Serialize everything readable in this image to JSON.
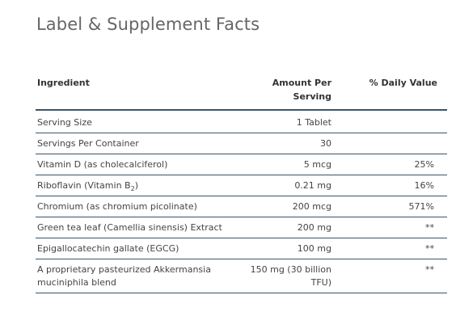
{
  "page": {
    "title": "Label & Supplement Facts"
  },
  "table": {
    "headers": {
      "ingredient": "Ingredient",
      "amount": "Amount Per Serving",
      "daily_value": "% Daily Value"
    },
    "rows": [
      {
        "ingredient": "Serving Size",
        "amount": "1 Tablet",
        "daily_value": ""
      },
      {
        "ingredient": "Servings Per Container",
        "amount": "30",
        "daily_value": ""
      },
      {
        "ingredient": "Vitamin D (as cholecalciferol)",
        "amount": "5 mcg",
        "daily_value": "25%"
      },
      {
        "ingredient_main": "Riboflavin (Vitamin B",
        "ingredient_sub": "2",
        "ingredient_end": ")",
        "amount": "0.21 mg",
        "daily_value": "16%"
      },
      {
        "ingredient": "Chromium (as chromium picolinate)",
        "amount": "200 mcg",
        "daily_value": "571%"
      },
      {
        "ingredient": "Green tea leaf (Camellia sinensis) Extract",
        "amount": "200 mg",
        "daily_value": "**"
      },
      {
        "ingredient": "Epigallocatechin gallate (EGCG)",
        "amount": "100 mg",
        "daily_value": "**"
      },
      {
        "ingredient": "A proprietary pasteurized Akkermansia muciniphila blend",
        "amount": "150 mg (30 billion TFU)",
        "daily_value": "**"
      }
    ]
  }
}
